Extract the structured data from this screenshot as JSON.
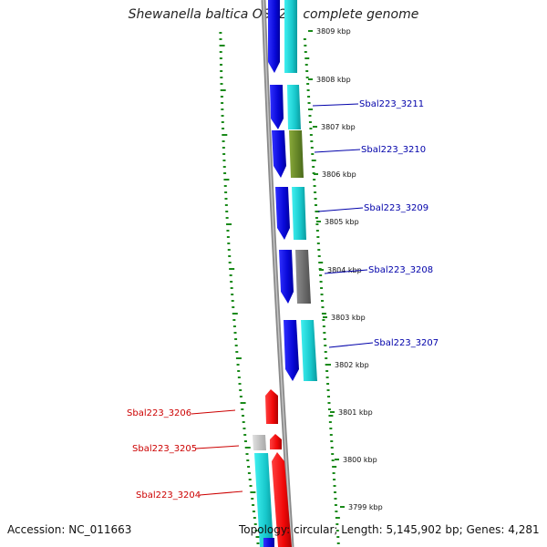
{
  "title": "Shewanella baltica OS223, complete genome",
  "accession": "Accession: NC_011663",
  "topology": "Topology: circular; Length: 5,145,902 bp; Genes: 4,281",
  "colors": {
    "blue": "#0a0ae6",
    "cyan": "#18d2d6",
    "olive": "#6a8a2a",
    "gray": "#6e6e6e",
    "lightgray": "#c8c8c8",
    "red": "#f00a0a",
    "green": "#1a8a1a",
    "label_blue": "#0000aa",
    "label_red": "#cc0000"
  },
  "scale_labels": [
    "3809 kbp",
    "3808 kbp",
    "3807 kbp",
    "3806 kbp",
    "3805 kbp",
    "3804 kbp",
    "3803 kbp",
    "3802 kbp",
    "3801 kbp",
    "3800 kbp",
    "3799 kbp"
  ],
  "gene_labels": [
    {
      "name": "Sbal223_3211",
      "side": "right"
    },
    {
      "name": "Sbal223_3210",
      "side": "right"
    },
    {
      "name": "Sbal223_3209",
      "side": "right"
    },
    {
      "name": "Sbal223_3208",
      "side": "right"
    },
    {
      "name": "Sbal223_3207",
      "side": "right"
    },
    {
      "name": "Sbal223_3206",
      "side": "left"
    },
    {
      "name": "Sbal223_3205",
      "side": "left"
    },
    {
      "name": "Sbal223_3204",
      "side": "left"
    }
  ]
}
